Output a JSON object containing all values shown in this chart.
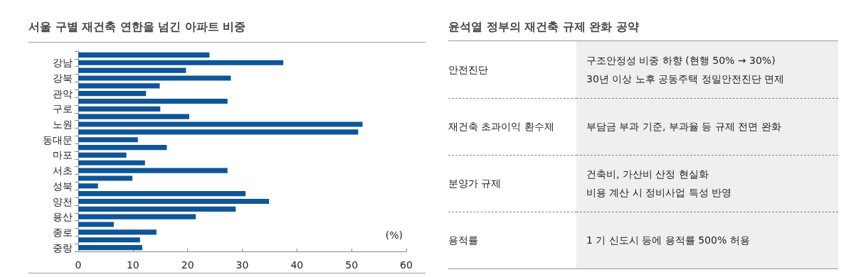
{
  "chart_data": [
    {
      "type": "bar",
      "title": "서울 구별 재건축 연한을 넘긴 아파트 비중",
      "orientation": "horizontal",
      "categories": [
        null,
        "강남",
        null,
        "강북",
        null,
        "관악",
        null,
        "구로",
        null,
        "노원",
        null,
        "동대문",
        null,
        "마포",
        null,
        "서초",
        null,
        "성북",
        null,
        "양천",
        null,
        "용산",
        null,
        "종로",
        null,
        "중랑"
      ],
      "values": [
        24.0,
        37.5,
        19.7,
        27.9,
        14.9,
        12.4,
        27.3,
        15.0,
        20.3,
        52.0,
        51.2,
        10.9,
        16.2,
        8.8,
        12.2,
        27.3,
        9.9,
        3.6,
        30.6,
        34.9,
        28.8,
        21.5,
        6.5,
        14.3,
        11.3,
        11.7
      ],
      "color": "#0f5597",
      "xlim": [
        0,
        60
      ],
      "xticks": [
        0,
        10,
        20,
        30,
        40,
        50,
        60
      ],
      "grid": false,
      "annotations": [
        "(%)"
      ]
    },
    {
      "type": "other",
      "title": "윤석열 정부의 재건축 규제 완화 공약",
      "y_categories": [
        "안전진단",
        "재건축 초과이익 환수제",
        "분양가 규제",
        "용적률"
      ],
      "cell_labels": [
        [
          "구조안정성 비중 하향 (현행 50% → 30%)\n30년 이상 노후 공동주택 정밀안전진단 면제"
        ],
        [
          "부담금 부과 기준, 부과율 등 규제 전면 완화"
        ],
        [
          "건축비, 가산비 산정 현실화\n비용 계산 시 정비사업 특성 반영"
        ],
        [
          "1 기 신도시 등에 용적률 500% 허용"
        ]
      ]
    }
  ]
}
